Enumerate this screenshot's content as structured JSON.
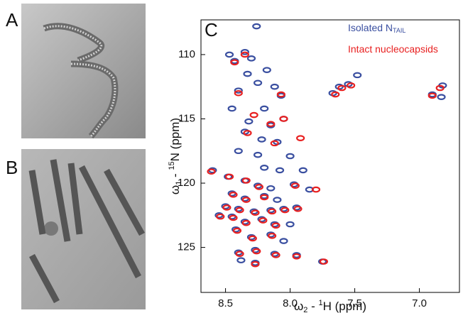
{
  "panels": [
    {
      "label": "A"
    },
    {
      "label": "B"
    },
    {
      "label": "C"
    }
  ],
  "chart_data": {
    "type": "scatter",
    "x_label": [
      "ω",
      "2",
      " - ",
      "1",
      "H  (ppm)"
    ],
    "y_label": [
      "ω",
      "1",
      " - ",
      "15",
      "N  (ppm)"
    ],
    "xlim": [
      8.69,
      6.69
    ],
    "ylim": [
      128.5,
      107.3
    ],
    "xticks": [
      8.5,
      {
        "value": 8,
        "label": "8.0"
      },
      7.5,
      {
        "value": 7,
        "label": "7.0"
      }
    ],
    "yticks": [
      110,
      115,
      120,
      125
    ],
    "legend": "top-right",
    "series": [
      {
        "name": "Isolated N",
        "name_subscript": "TAIL",
        "color": "#3a4fa0",
        "x": [
          8.26,
          8.47,
          8.43,
          8.35,
          8.3,
          8.33,
          8.18,
          8.25,
          8.4,
          8.12,
          8.07,
          7.67,
          7.62,
          7.55,
          7.48,
          6.82,
          6.9,
          6.83,
          8.45,
          8.2,
          8.32,
          8.15,
          8.05,
          8.35,
          8.22,
          8.1,
          8.4,
          8.25,
          8.0,
          8.2,
          8.08,
          7.9,
          8.6,
          8.48,
          8.35,
          8.25,
          8.15,
          7.97,
          7.85,
          8.45,
          8.35,
          8.2,
          8.1,
          8.5,
          8.4,
          8.28,
          8.15,
          8.05,
          7.95,
          8.55,
          8.45,
          8.35,
          8.22,
          8.12,
          8.0,
          8.42,
          8.3,
          8.15,
          8.05,
          8.4,
          8.27,
          8.12,
          7.95,
          8.38,
          8.27,
          7.75
        ],
        "values": [
          107.8,
          110.0,
          110.5,
          109.8,
          110.3,
          111.5,
          111.2,
          112.2,
          112.8,
          112.5,
          113.2,
          113.0,
          112.5,
          112.3,
          111.6,
          112.4,
          113.1,
          113.3,
          114.2,
          114.2,
          115.2,
          115.5,
          115.0,
          116.0,
          116.6,
          116.8,
          117.5,
          117.8,
          117.9,
          118.8,
          119.0,
          119.0,
          119.0,
          119.5,
          119.8,
          120.2,
          120.4,
          120.1,
          120.5,
          120.8,
          121.2,
          121.0,
          121.3,
          121.8,
          122.0,
          122.2,
          122.1,
          122.0,
          121.9,
          122.5,
          122.6,
          123.0,
          122.8,
          123.2,
          123.2,
          123.6,
          124.2,
          124.0,
          124.5,
          125.4,
          125.2,
          125.5,
          125.6,
          126.0,
          126.2,
          126.1
        ]
      },
      {
        "name": "Intact nucleocapsids",
        "color": "#e82020",
        "x": [
          8.43,
          8.35,
          8.4,
          8.07,
          7.65,
          7.6,
          7.53,
          6.84,
          6.9,
          8.28,
          8.05,
          8.15,
          8.33,
          7.92,
          8.12,
          8.61,
          8.47,
          8.34,
          8.24,
          7.96,
          7.8,
          8.44,
          8.34,
          8.2,
          8.49,
          8.39,
          8.27,
          8.14,
          8.04,
          7.94,
          8.54,
          8.44,
          8.34,
          8.21,
          8.11,
          8.41,
          8.29,
          8.14,
          8.39,
          8.26,
          8.11,
          7.95,
          8.27,
          7.74
        ],
        "values": [
          110.6,
          110.0,
          113.0,
          113.1,
          113.1,
          112.6,
          112.4,
          112.6,
          113.2,
          114.7,
          115.0,
          115.4,
          116.1,
          116.5,
          116.9,
          119.1,
          119.5,
          119.8,
          120.3,
          120.2,
          120.5,
          120.9,
          121.3,
          121.1,
          121.9,
          122.1,
          122.3,
          122.2,
          122.1,
          122.0,
          122.6,
          122.7,
          123.1,
          122.9,
          123.3,
          123.7,
          124.3,
          124.1,
          125.5,
          125.3,
          125.6,
          125.7,
          126.3,
          126.1
        ]
      }
    ]
  }
}
